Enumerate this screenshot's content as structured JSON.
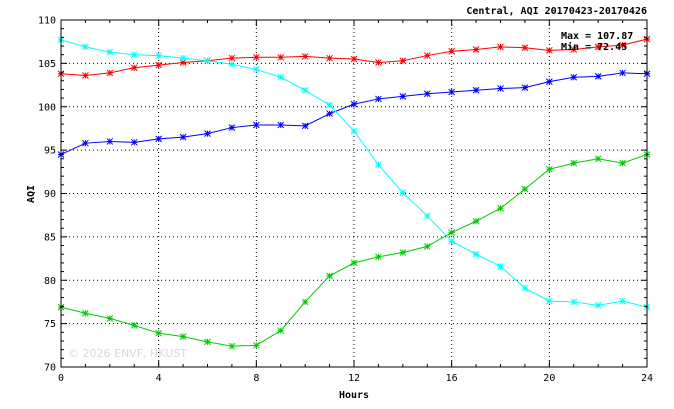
{
  "chart_data": {
    "type": "line",
    "title": "Central, AQI 20170423-20170426",
    "xlabel": "Hours",
    "ylabel": "AQI",
    "xlim": [
      0,
      24
    ],
    "ylim": [
      70,
      110
    ],
    "x_ticks": [
      0,
      4,
      8,
      12,
      16,
      20,
      24
    ],
    "y_ticks": [
      70,
      75,
      80,
      85,
      90,
      95,
      100,
      105,
      110
    ],
    "grid": true,
    "x": [
      0,
      1,
      2,
      3,
      4,
      5,
      6,
      7,
      8,
      9,
      10,
      11,
      12,
      13,
      14,
      15,
      16,
      17,
      18,
      19,
      20,
      21,
      22,
      23,
      24
    ],
    "series": [
      {
        "color": "#ff0000",
        "values": [
          103.8,
          103.6,
          103.9,
          104.5,
          104.8,
          105.1,
          105.3,
          105.6,
          105.7,
          105.7,
          105.8,
          105.6,
          105.5,
          105.1,
          105.3,
          105.9,
          106.4,
          106.6,
          106.9,
          106.8,
          106.5,
          106.6,
          106.9,
          107.1,
          107.8
        ]
      },
      {
        "color": "#0000ff",
        "values": [
          94.5,
          95.8,
          96.0,
          95.9,
          96.3,
          96.5,
          96.9,
          97.6,
          97.9,
          97.9,
          97.8,
          99.2,
          100.3,
          100.9,
          101.2,
          101.5,
          101.7,
          101.9,
          102.1,
          102.2,
          102.9,
          103.4,
          103.5,
          103.9,
          103.8
        ]
      },
      {
        "color": "#00ffff",
        "values": [
          107.7,
          106.9,
          106.3,
          106.0,
          105.9,
          105.6,
          105.3,
          104.9,
          104.3,
          103.4,
          101.9,
          100.2,
          97.2,
          93.3,
          90.1,
          87.4,
          84.5,
          83.0,
          81.6,
          79.1,
          77.6,
          77.5,
          77.1,
          77.6,
          76.9
        ]
      },
      {
        "color": "#00cc00",
        "values": [
          76.9,
          76.2,
          75.6,
          74.8,
          73.9,
          73.5,
          72.9,
          72.4,
          72.5,
          74.2,
          77.5,
          80.5,
          82.0,
          82.7,
          83.2,
          83.9,
          85.5,
          86.8,
          88.3,
          90.5,
          92.8,
          93.5,
          94.0,
          93.5,
          94.5
        ]
      }
    ],
    "annotations": {
      "max_label": "Max = 107.87",
      "min_label": "Min = 72.45"
    },
    "watermark": "© 2026  ENVF, HKUST"
  }
}
